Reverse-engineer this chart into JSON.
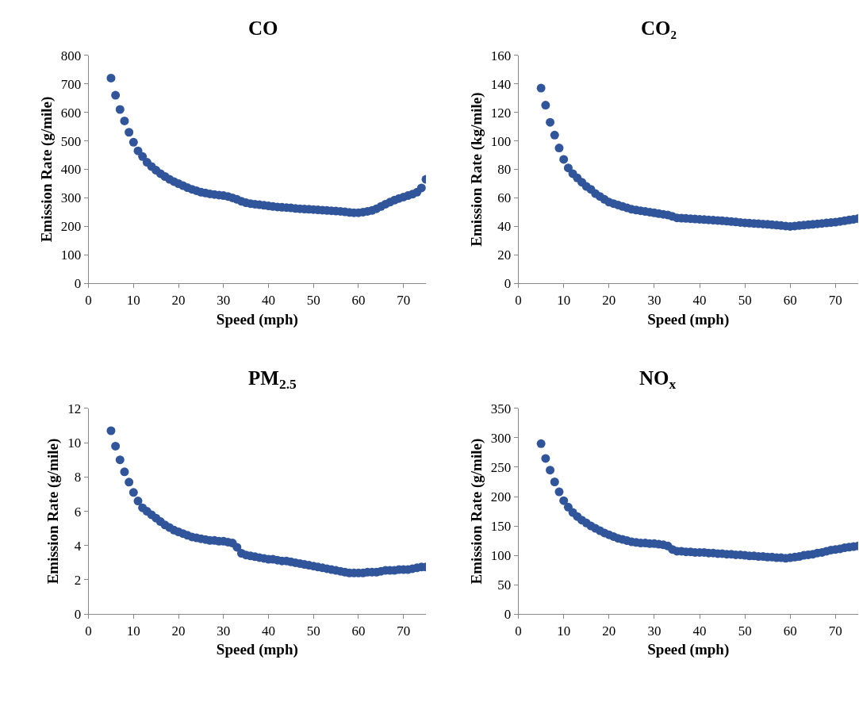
{
  "chart_data": [
    {
      "type": "scatter",
      "title": "CO",
      "xlabel": "Speed (mph)",
      "ylabel": "Emission Rate (g/mile)",
      "marker": "circle",
      "xlim": [
        0,
        75
      ],
      "xticks": [
        0,
        10,
        20,
        30,
        40,
        50,
        60,
        70
      ],
      "ylim": [
        0,
        800
      ],
      "yticks": [
        0,
        100,
        200,
        300,
        400,
        500,
        600,
        700,
        800
      ],
      "x": [
        5,
        6,
        7,
        8,
        9,
        10,
        11,
        12,
        13,
        14,
        15,
        16,
        17,
        18,
        19,
        20,
        21,
        22,
        23,
        24,
        25,
        26,
        27,
        28,
        29,
        30,
        31,
        32,
        33,
        34,
        35,
        36,
        37,
        38,
        39,
        40,
        41,
        42,
        43,
        44,
        45,
        46,
        47,
        48,
        49,
        50,
        51,
        52,
        53,
        54,
        55,
        56,
        57,
        58,
        59,
        60,
        61,
        62,
        63,
        64,
        65,
        66,
        67,
        68,
        69,
        70,
        71,
        72,
        73,
        74,
        75
      ],
      "series": [
        {
          "color": "#30559a",
          "values": [
            720,
            660,
            610,
            570,
            530,
            495,
            465,
            445,
            425,
            410,
            397,
            385,
            375,
            365,
            357,
            350,
            343,
            336,
            330,
            325,
            320,
            317,
            314,
            312,
            310,
            308,
            305,
            300,
            295,
            288,
            283,
            280,
            278,
            276,
            274,
            272,
            270,
            268,
            267,
            266,
            265,
            263,
            262,
            261,
            260,
            259,
            258,
            257,
            256,
            255,
            254,
            253,
            251,
            249,
            248,
            248,
            250,
            253,
            256,
            262,
            270,
            278,
            285,
            292,
            298,
            303,
            308,
            313,
            320,
            335,
            365
          ]
        }
      ]
    },
    {
      "type": "scatter",
      "title": "CO₂",
      "xlabel": "Speed (mph)",
      "ylabel": "Emission Rate (kg/mile)",
      "marker": "circle",
      "xlim": [
        0,
        75
      ],
      "xticks": [
        0,
        10,
        20,
        30,
        40,
        50,
        60,
        70
      ],
      "ylim": [
        0,
        160
      ],
      "yticks": [
        0,
        20,
        40,
        60,
        80,
        100,
        120,
        140,
        160
      ],
      "x": [
        5,
        6,
        7,
        8,
        9,
        10,
        11,
        12,
        13,
        14,
        15,
        16,
        17,
        18,
        19,
        20,
        21,
        22,
        23,
        24,
        25,
        26,
        27,
        28,
        29,
        30,
        31,
        32,
        33,
        34,
        35,
        36,
        37,
        38,
        39,
        40,
        41,
        42,
        43,
        44,
        45,
        46,
        47,
        48,
        49,
        50,
        51,
        52,
        53,
        54,
        55,
        56,
        57,
        58,
        59,
        60,
        61,
        62,
        63,
        64,
        65,
        66,
        67,
        68,
        69,
        70,
        71,
        72,
        73,
        74,
        75
      ],
      "series": [
        {
          "color": "#30559a",
          "values": [
            137,
            125,
            113,
            104,
            95,
            87,
            81,
            77,
            74,
            71,
            68,
            66,
            63,
            61,
            59,
            57,
            56,
            55,
            54,
            53,
            52,
            51.5,
            51,
            50.5,
            50,
            49.5,
            49,
            48.5,
            48,
            47,
            46,
            45.8,
            45.6,
            45.4,
            45.2,
            45,
            44.8,
            44.6,
            44.4,
            44.2,
            44,
            43.7,
            43.4,
            43.1,
            42.8,
            42.5,
            42.3,
            42.1,
            41.9,
            41.7,
            41.5,
            41.2,
            40.9,
            40.6,
            40.3,
            40,
            40.3,
            40.6,
            40.9,
            41.2,
            41.5,
            41.8,
            42.1,
            42.4,
            42.7,
            43,
            43.5,
            44,
            44.5,
            45,
            45.5
          ]
        }
      ]
    },
    {
      "type": "scatter",
      "title": "PM$_{2.5}$",
      "xlabel": "Speed (mph)",
      "ylabel": "Emission Rate (g/mile)",
      "marker": "circle",
      "xlim": [
        0,
        75
      ],
      "xticks": [
        0,
        10,
        20,
        30,
        40,
        50,
        60,
        70
      ],
      "ylim": [
        0,
        12
      ],
      "yticks": [
        0,
        2,
        4,
        6,
        8,
        10,
        12
      ],
      "x": [
        5,
        6,
        7,
        8,
        9,
        10,
        11,
        12,
        13,
        14,
        15,
        16,
        17,
        18,
        19,
        20,
        21,
        22,
        23,
        24,
        25,
        26,
        27,
        28,
        29,
        30,
        31,
        32,
        33,
        34,
        35,
        36,
        37,
        38,
        39,
        40,
        41,
        42,
        43,
        44,
        45,
        46,
        47,
        48,
        49,
        50,
        51,
        52,
        53,
        54,
        55,
        56,
        57,
        58,
        59,
        60,
        61,
        62,
        63,
        64,
        65,
        66,
        67,
        68,
        69,
        70,
        71,
        72,
        73,
        74,
        75
      ],
      "series": [
        {
          "color": "#30559a",
          "values": [
            10.7,
            9.8,
            9.0,
            8.3,
            7.7,
            7.1,
            6.6,
            6.2,
            6.0,
            5.8,
            5.6,
            5.4,
            5.2,
            5.05,
            4.9,
            4.8,
            4.7,
            4.6,
            4.5,
            4.45,
            4.4,
            4.35,
            4.3,
            4.3,
            4.25,
            4.25,
            4.2,
            4.15,
            3.9,
            3.55,
            3.45,
            3.4,
            3.35,
            3.3,
            3.25,
            3.2,
            3.2,
            3.15,
            3.1,
            3.1,
            3.05,
            3.0,
            2.95,
            2.9,
            2.85,
            2.8,
            2.75,
            2.7,
            2.65,
            2.6,
            2.55,
            2.5,
            2.45,
            2.4,
            2.4,
            2.4,
            2.4,
            2.45,
            2.45,
            2.45,
            2.5,
            2.55,
            2.55,
            2.55,
            2.6,
            2.6,
            2.6,
            2.65,
            2.7,
            2.75,
            2.75
          ]
        }
      ]
    },
    {
      "type": "scatter",
      "title": "NO$_{x}$",
      "xlabel": "Speed (mph)",
      "ylabel": "Emission Rate (g/mile)",
      "marker": "circle",
      "xlim": [
        0,
        75
      ],
      "xticks": [
        0,
        10,
        20,
        30,
        40,
        50,
        60,
        70
      ],
      "ylim": [
        0,
        350
      ],
      "yticks": [
        0,
        50,
        100,
        150,
        200,
        250,
        300,
        350
      ],
      "x": [
        5,
        6,
        7,
        8,
        9,
        10,
        11,
        12,
        13,
        14,
        15,
        16,
        17,
        18,
        19,
        20,
        21,
        22,
        23,
        24,
        25,
        26,
        27,
        28,
        29,
        30,
        31,
        32,
        33,
        34,
        35,
        36,
        37,
        38,
        39,
        40,
        41,
        42,
        43,
        44,
        45,
        46,
        47,
        48,
        49,
        50,
        51,
        52,
        53,
        54,
        55,
        56,
        57,
        58,
        59,
        60,
        61,
        62,
        63,
        64,
        65,
        66,
        67,
        68,
        69,
        70,
        71,
        72,
        73,
        74,
        75
      ],
      "series": [
        {
          "color": "#30559a",
          "values": [
            290,
            265,
            245,
            225,
            208,
            193,
            182,
            173,
            166,
            160,
            155,
            150,
            146,
            142,
            138,
            135,
            132,
            129,
            127,
            125,
            123,
            122,
            121,
            121,
            120,
            120,
            119,
            118,
            116,
            110,
            107,
            107,
            106,
            106,
            105,
            105,
            105,
            104,
            104,
            103,
            103,
            102,
            102,
            101,
            101,
            100,
            99,
            99,
            98,
            98,
            97,
            97,
            96,
            96,
            95,
            96,
            97,
            98,
            100,
            101,
            102,
            104,
            105,
            107,
            109,
            110,
            111,
            113,
            114,
            115,
            116
          ]
        }
      ]
    }
  ]
}
